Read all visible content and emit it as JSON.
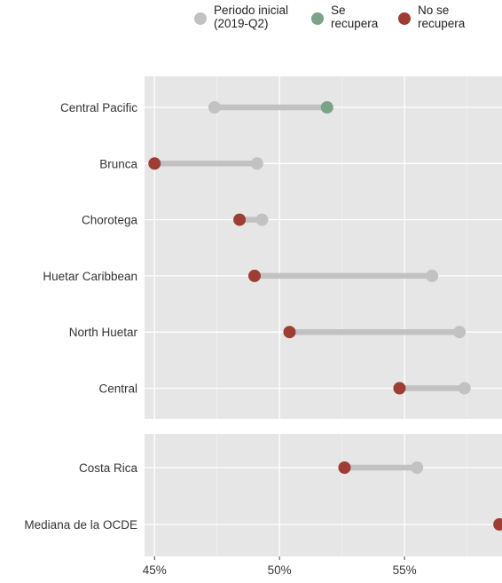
{
  "legend": {
    "items": [
      {
        "label": "Periodo inicial\n(2019-Q2)",
        "color": "#c2c2c2"
      },
      {
        "label": "Se\nrecupera",
        "color": "#7aa388"
      },
      {
        "label": "No se\nrecupera",
        "color": "#9e3d33"
      }
    ]
  },
  "chart_data": {
    "type": "dumbbell",
    "xlim": [
      44.6,
      58.9
    ],
    "xticks": [
      {
        "value": 45,
        "label": "45%"
      },
      {
        "value": 50,
        "label": "50%"
      },
      {
        "value": 55,
        "label": "55%"
      }
    ],
    "colors": {
      "initial": "#c2c2c2",
      "recover": "#7aa388",
      "norecover": "#9e3d33",
      "line": "#c2c2c2"
    },
    "panels": [
      {
        "rows": [
          {
            "label": "Central Pacific",
            "initial": 47.4,
            "final": 51.9,
            "status": "recover"
          },
          {
            "label": "Brunca",
            "initial": 49.1,
            "final": 45.0,
            "status": "norecover"
          },
          {
            "label": "Chorotega",
            "initial": 49.3,
            "final": 48.4,
            "status": "norecover"
          },
          {
            "label": "Huetar Caribbean",
            "initial": 56.1,
            "final": 49.0,
            "status": "norecover"
          },
          {
            "label": "North Huetar",
            "initial": 57.2,
            "final": 50.4,
            "status": "norecover"
          },
          {
            "label": "Central",
            "initial": 57.4,
            "final": 54.8,
            "status": "norecover"
          }
        ]
      },
      {
        "rows": [
          {
            "label": "Costa Rica",
            "initial": 55.5,
            "final": 52.6,
            "status": "norecover"
          },
          {
            "label": "Mediana de la OCDE",
            "initial": 58.8,
            "final": 58.8,
            "status": "norecover"
          }
        ]
      }
    ]
  }
}
